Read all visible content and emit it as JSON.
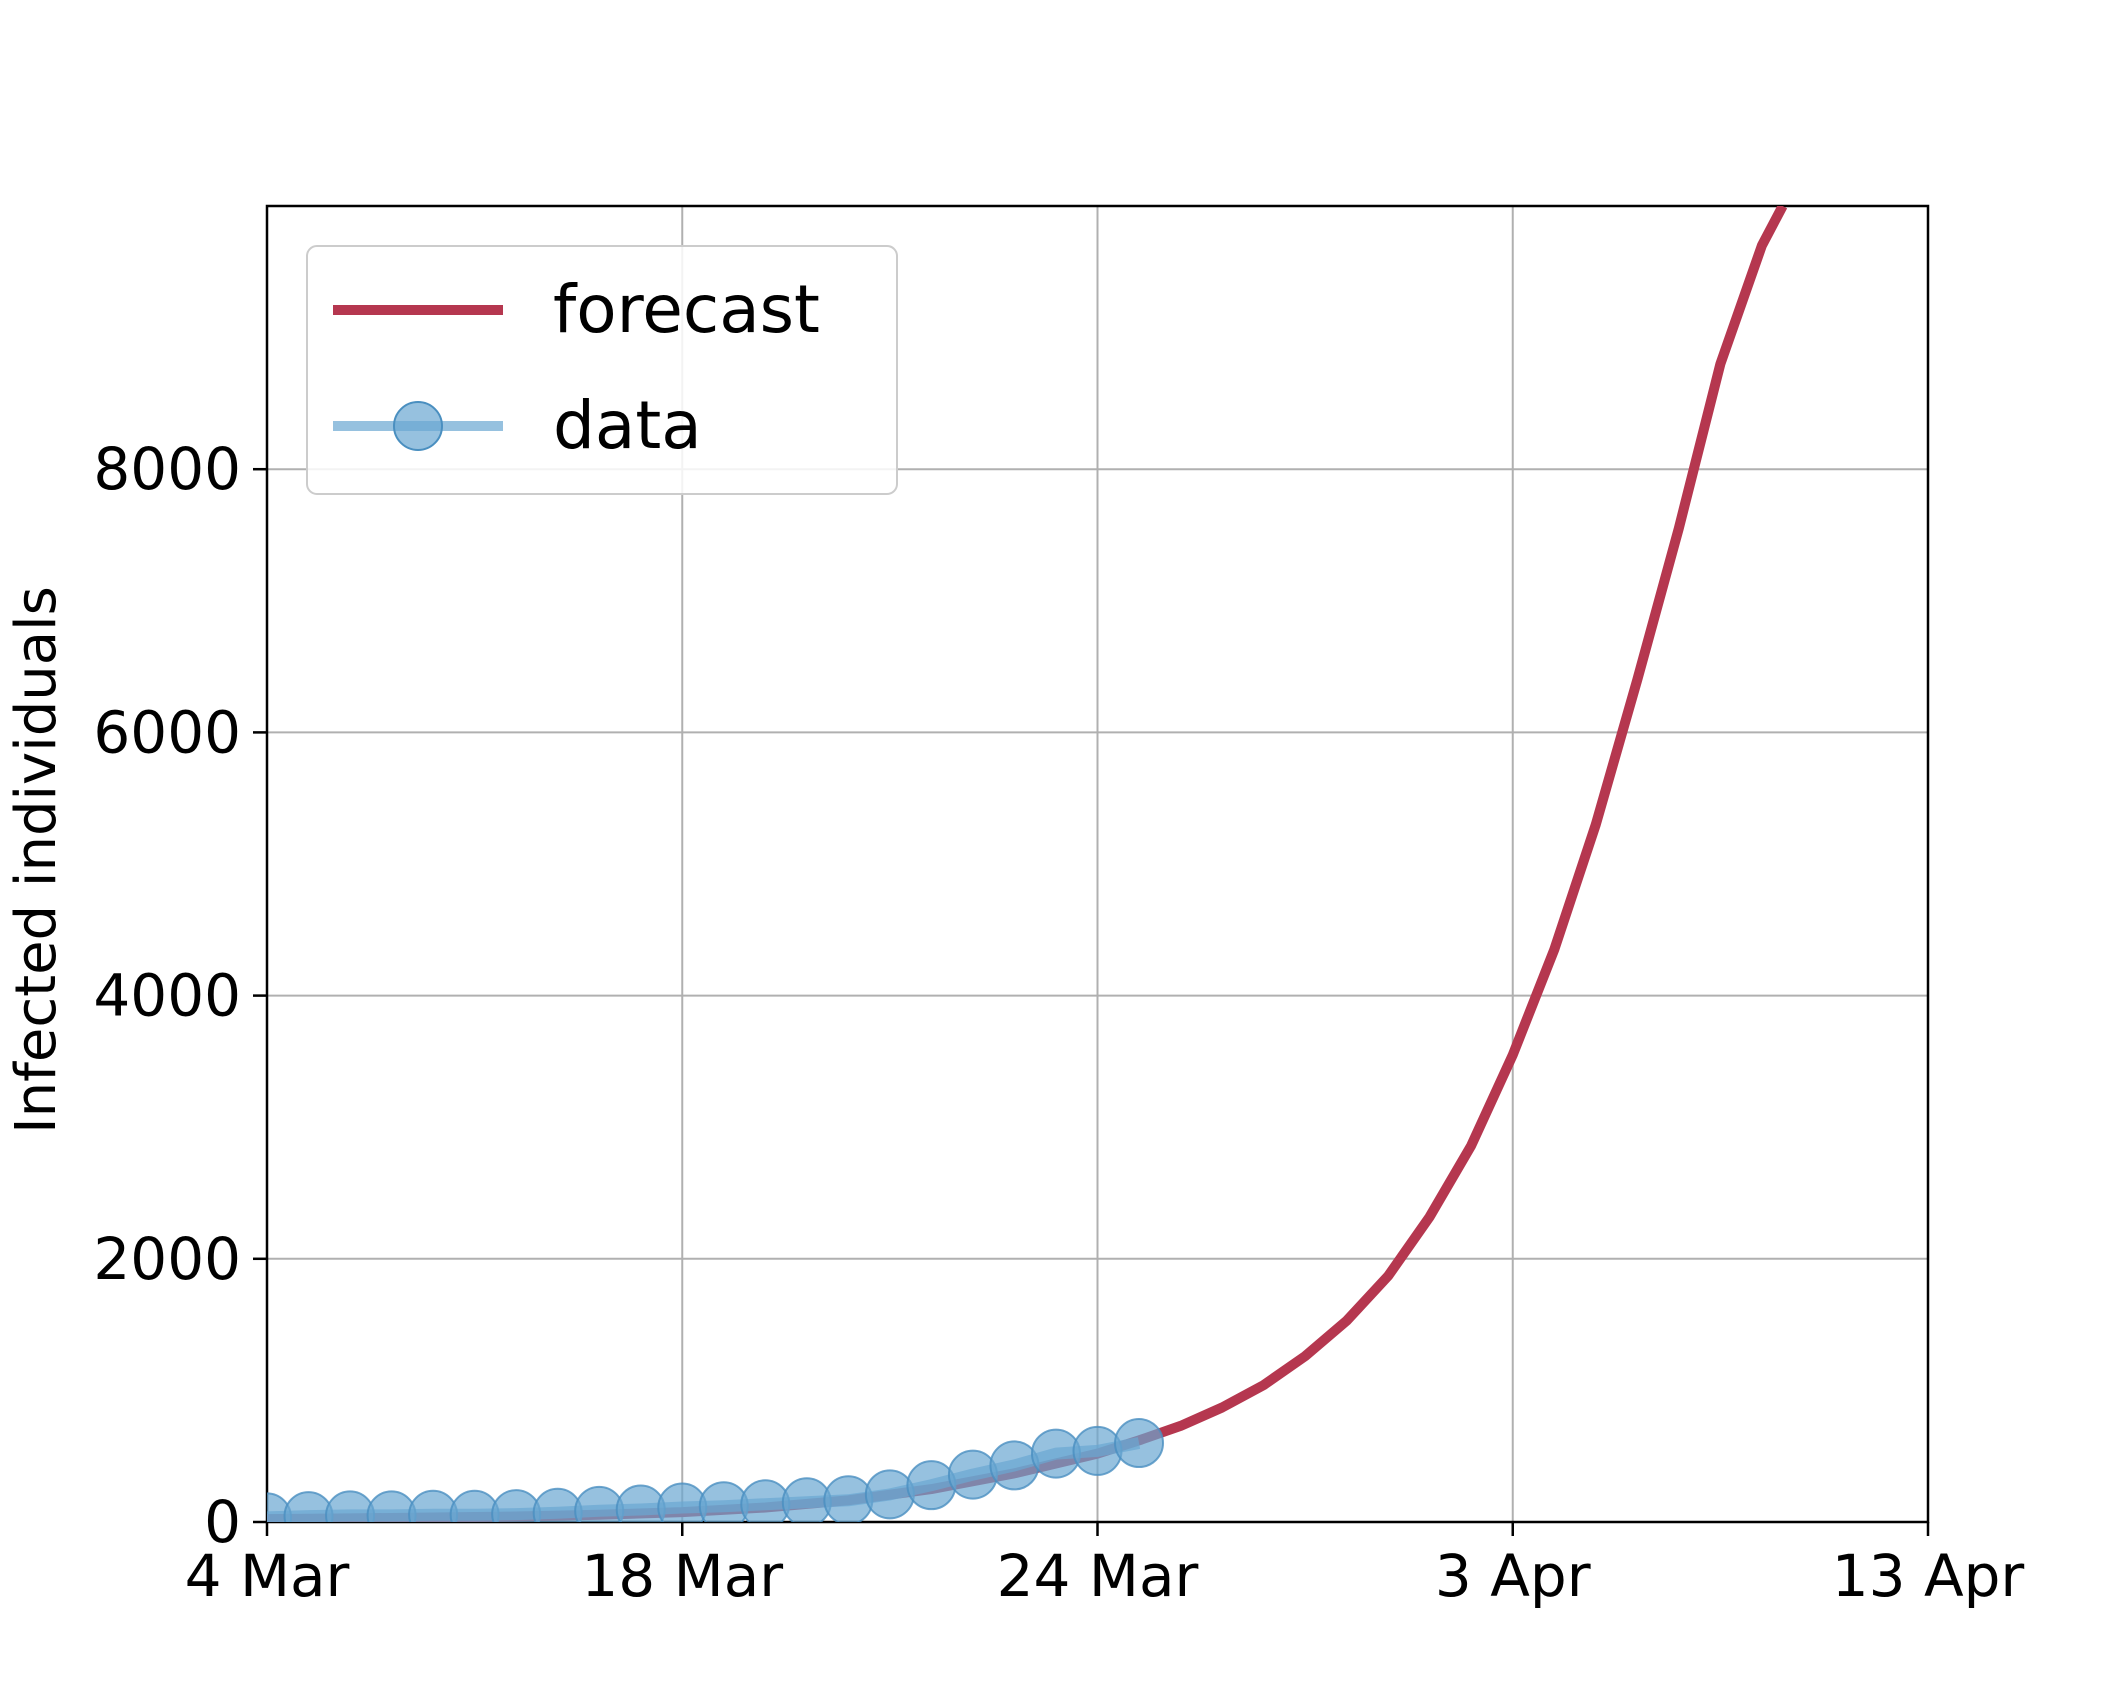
{
  "chart_data": {
    "type": "line",
    "title": "",
    "xlabel": "",
    "ylabel": "Infected individuals",
    "x_ticks": [
      {
        "value": 0,
        "label": "4 Mar"
      },
      {
        "value": 10,
        "label": "18 Mar"
      },
      {
        "value": 20,
        "label": "24 Mar"
      },
      {
        "value": 30,
        "label": "3 Apr"
      },
      {
        "value": 40,
        "label": "13 Apr"
      }
    ],
    "xlim": [
      0,
      40
    ],
    "ylim": [
      0,
      10000
    ],
    "y_ticks": [
      {
        "value": 0,
        "label": "0"
      },
      {
        "value": 2000,
        "label": "2000"
      },
      {
        "value": 4000,
        "label": "4000"
      },
      {
        "value": 6000,
        "label": "6000"
      },
      {
        "value": 8000,
        "label": "8000"
      }
    ],
    "grid": true,
    "legend_position": "upper-left",
    "series": [
      {
        "name": "forecast",
        "color": "#b5374f",
        "style": "line",
        "x": [
          0,
          2,
          4,
          6,
          8,
          10,
          12,
          14,
          16,
          18,
          20,
          21,
          22,
          23,
          24,
          25,
          26,
          27,
          28,
          29,
          30,
          31,
          32,
          33,
          34,
          35,
          36,
          36.5
        ],
        "y": [
          22,
          27,
          34,
          42,
          55,
          75,
          110,
          165,
          250,
          370,
          520,
          620,
          730,
          870,
          1040,
          1260,
          1530,
          1870,
          2320,
          2860,
          3550,
          4350,
          5300,
          6400,
          7550,
          8800,
          9700,
          10000
        ]
      },
      {
        "name": "data",
        "color": "#6aa7d2",
        "style": "line-marker",
        "x": [
          0,
          1,
          2,
          3,
          4,
          5,
          6,
          7,
          8,
          9,
          10,
          11,
          12,
          13,
          14,
          15,
          16,
          17,
          18,
          19,
          20,
          21
        ],
        "y": [
          35,
          45,
          50,
          50,
          55,
          55,
          60,
          70,
          85,
          95,
          110,
          120,
          135,
          150,
          165,
          210,
          280,
          360,
          430,
          520,
          540,
          600
        ]
      }
    ]
  }
}
